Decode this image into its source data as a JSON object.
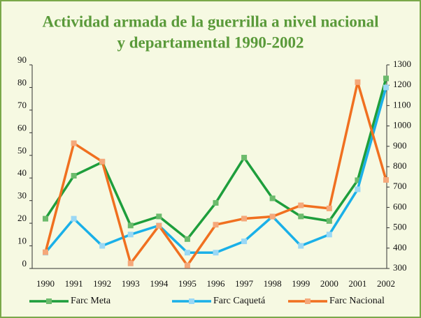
{
  "chart_data": {
    "type": "line",
    "title": [
      "Actividad armada de la guerrilla a nivel nacional",
      "y departamental 1990-2002"
    ],
    "categories": [
      "1990",
      "1991",
      "1992",
      "1993",
      "1994",
      "1995",
      "1996",
      "1997",
      "1998",
      "1999",
      "2000",
      "2001",
      "2002"
    ],
    "ylim": [
      0,
      90
    ],
    "yticks": [
      0,
      10,
      20,
      30,
      40,
      50,
      60,
      70,
      80,
      90
    ],
    "y2lim": [
      300,
      1300
    ],
    "y2ticks": [
      300,
      400,
      500,
      600,
      700,
      800,
      900,
      1000,
      1100,
      1200,
      1300
    ],
    "legend": "bottom",
    "series": [
      {
        "name": "Farc Meta",
        "color": "#1e9e3c",
        "marker_color": "#6cbb6c",
        "values": [
          22,
          41,
          47,
          19,
          23,
          13,
          29,
          49,
          31,
          23,
          21,
          39,
          84
        ]
      },
      {
        "name": "Farc Caquetá",
        "color": "#1ab0e8",
        "marker_color": "#9ad8f5",
        "values": [
          7,
          22,
          10,
          15,
          19,
          7,
          7,
          12,
          23,
          10,
          15,
          35,
          80
        ]
      },
      {
        "name": "Farc Nacional",
        "color": "#f07020",
        "marker_color": "#f5a87a",
        "axis": "y2",
        "values": [
          380,
          915,
          825,
          325,
          510,
          315,
          515,
          545,
          555,
          610,
          595,
          1215,
          735
        ]
      }
    ]
  }
}
